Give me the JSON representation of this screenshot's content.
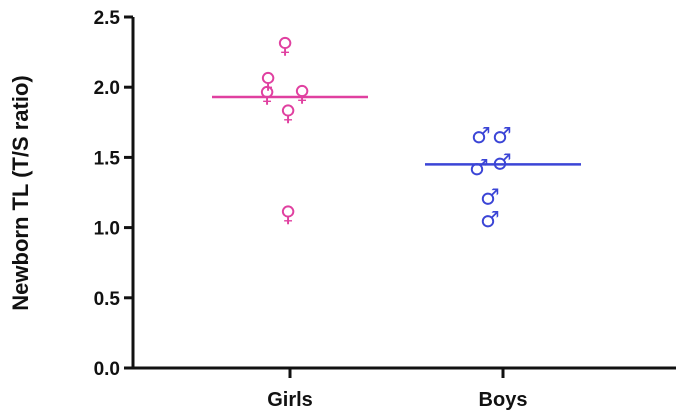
{
  "chart_data": {
    "type": "scatter",
    "title": "",
    "ylabel": "Newborn TL (T/S ratio)",
    "xlabel": "",
    "ylim": [
      0.0,
      2.5
    ],
    "yticks": [
      "0.0",
      "0.5",
      "1.0",
      "1.5",
      "2.0",
      "2.5"
    ],
    "categories": [
      "Girls",
      "Boys"
    ],
    "grid": false,
    "series": [
      {
        "category": "Girls",
        "symbol": "♀",
        "color": "#e040a0",
        "mean": 1.93,
        "points": [
          {
            "x": -0.05,
            "y": 2.3
          },
          {
            "x": -0.22,
            "y": 2.05
          },
          {
            "x": -0.23,
            "y": 1.95
          },
          {
            "x": -0.02,
            "y": 1.82
          },
          {
            "x": 0.12,
            "y": 1.96
          },
          {
            "x": -0.02,
            "y": 1.1
          }
        ]
      },
      {
        "category": "Boys",
        "symbol": "♂",
        "color": "#3b45d6",
        "mean": 1.45,
        "points": [
          {
            "x": -0.22,
            "y": 1.66
          },
          {
            "x": -0.01,
            "y": 1.66
          },
          {
            "x": -0.24,
            "y": 1.43
          },
          {
            "x": -0.01,
            "y": 1.47
          },
          {
            "x": -0.13,
            "y": 1.22
          },
          {
            "x": -0.13,
            "y": 1.06
          }
        ]
      }
    ]
  }
}
